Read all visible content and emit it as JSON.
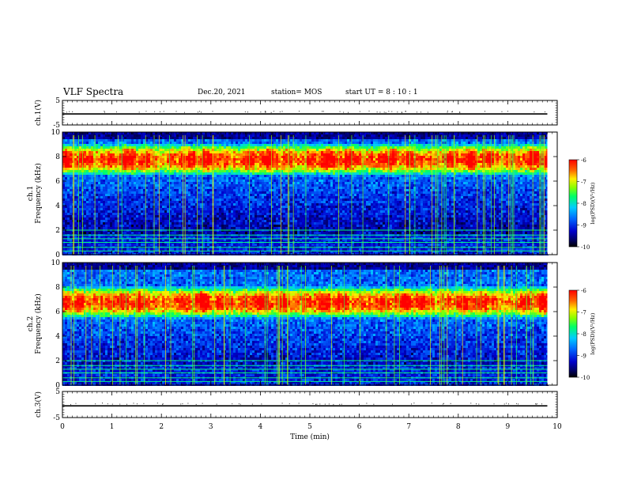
{
  "header": {
    "title": "VLF Spectra",
    "date": "Dec.20, 2021",
    "station": "station= MOS",
    "start": "start  UT =   8  : 10 : 1"
  },
  "chart_data": [
    {
      "type": "line",
      "id": "ch1v",
      "ylabel": "ch.1(V)",
      "ylim": [
        -5,
        5
      ],
      "yticks": [
        "5",
        "-5"
      ],
      "x": [
        0,
        9.8
      ],
      "values": [
        -0.5,
        -0.5
      ],
      "xlim": [
        0,
        10
      ]
    },
    {
      "type": "heatmap",
      "id": "ch1",
      "ylabel": "ch.1\nFrequency (kHz)",
      "ylim": [
        0,
        10
      ],
      "yticks": [
        "0",
        "2",
        "4",
        "6",
        "8",
        "10"
      ],
      "xlim": [
        0,
        10
      ],
      "data_x_end": 9.8,
      "emission_band_khz": [
        6.5,
        9.2
      ],
      "colorbar": {
        "label": "log(PSD)(V²/Hz)",
        "range": [
          -10,
          -6
        ],
        "ticks": [
          "-6",
          "-7",
          "-8",
          "-9",
          "-10"
        ]
      }
    },
    {
      "type": "heatmap",
      "id": "ch2",
      "ylabel": "ch.2\nFrequency (kHz)",
      "ylim": [
        0,
        10
      ],
      "yticks": [
        "0",
        "2",
        "4",
        "6",
        "8",
        "10"
      ],
      "xlim": [
        0,
        10
      ],
      "data_x_end": 9.8,
      "emission_band_khz": [
        5.5,
        8.2
      ],
      "colorbar": {
        "label": "log(PSD)(V²/Hz)",
        "range": [
          -10,
          -6
        ],
        "ticks": [
          "-6",
          "-7",
          "-8",
          "-9",
          "-10"
        ]
      }
    },
    {
      "type": "line",
      "id": "ch3v",
      "ylabel": "ch.3(V)",
      "ylim": [
        -5,
        5
      ],
      "yticks": [
        "5",
        "-5"
      ],
      "x": [
        0,
        9.8
      ],
      "values": [
        -0.5,
        -0.5
      ],
      "xlim": [
        0,
        10
      ],
      "xlabel": "Time  (min)",
      "xticks": [
        "0",
        "1",
        "2",
        "3",
        "4",
        "5",
        "6",
        "7",
        "8",
        "9",
        "10"
      ]
    }
  ],
  "colors": {
    "frame": "#000000",
    "background": "#ffffff"
  }
}
